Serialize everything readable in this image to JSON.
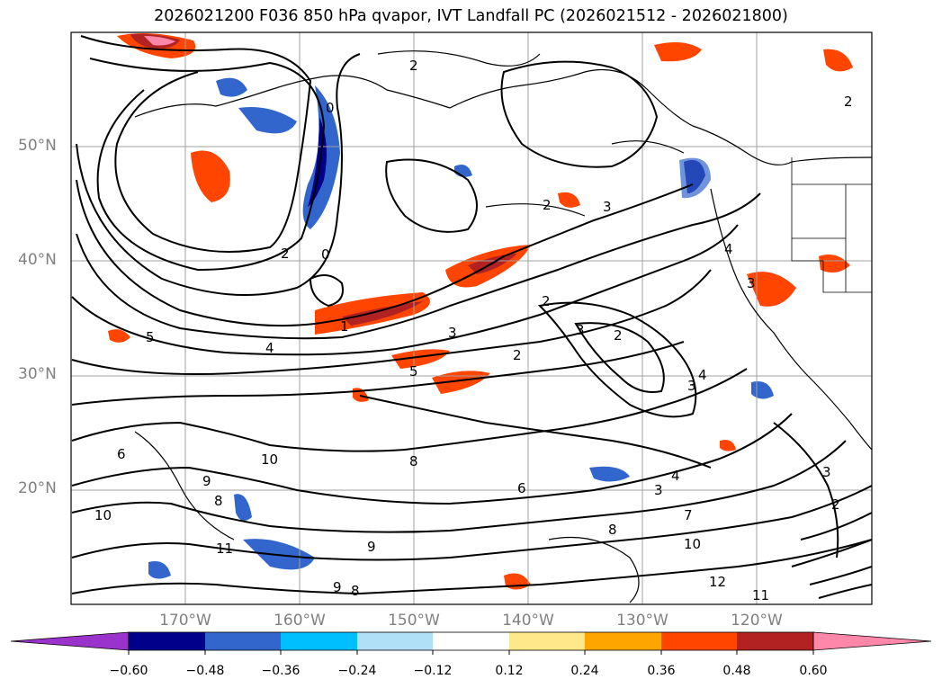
{
  "title": "2026021200 F036 850 hPa qvapor, IVT Landfall PC (2026021512 - 2026021800)",
  "map": {
    "lat_labels": [
      "50°N",
      "40°N",
      "30°N",
      "20°N"
    ],
    "lon_labels": [
      "170°W",
      "160°W",
      "150°W",
      "140°W",
      "130°W",
      "120°W"
    ],
    "contour_labels": [
      "2",
      "0",
      "2",
      "0",
      "1",
      "4",
      "5",
      "5",
      "6",
      "8",
      "10",
      "9",
      "10",
      "8",
      "11",
      "9",
      "8",
      "12",
      "11",
      "10",
      "9",
      "3",
      "2",
      "3",
      "4",
      "3",
      "2",
      "3",
      "6",
      "7",
      "8",
      "3",
      "4",
      "2",
      "3",
      "2",
      "4",
      "3",
      "2",
      "2"
    ]
  },
  "colorbar": {
    "ticks": [
      "−0.60",
      "−0.48",
      "−0.36",
      "−0.24",
      "−0.12",
      "0.12",
      "0.24",
      "0.36",
      "0.48",
      "0.60"
    ],
    "colors": [
      "#9933cc",
      "#00008b",
      "#3366cc",
      "#00bfff",
      "#b0e0f8",
      "#ffffff",
      "#ffe88a",
      "#ffa500",
      "#ff4500",
      "#b22222",
      "#ff88aa"
    ]
  }
}
